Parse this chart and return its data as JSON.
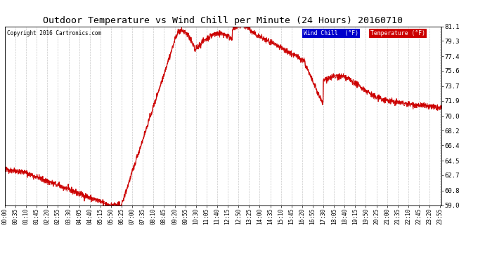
{
  "title": "Outdoor Temperature vs Wind Chill per Minute (24 Hours) 20160710",
  "copyright": "Copyright 2016 Cartronics.com",
  "yticks": [
    59.0,
    60.8,
    62.7,
    64.5,
    66.4,
    68.2,
    70.0,
    71.9,
    73.7,
    75.6,
    77.4,
    79.3,
    81.1
  ],
  "xtick_labels": [
    "00:00",
    "00:35",
    "01:10",
    "01:45",
    "02:20",
    "02:55",
    "03:30",
    "04:05",
    "04:40",
    "05:15",
    "05:50",
    "06:25",
    "07:00",
    "07:35",
    "08:10",
    "08:45",
    "09:20",
    "09:55",
    "10:30",
    "11:05",
    "11:40",
    "12:15",
    "12:50",
    "13:25",
    "14:00",
    "14:35",
    "15:10",
    "15:45",
    "16:20",
    "16:55",
    "17:30",
    "18:05",
    "18:40",
    "19:15",
    "19:50",
    "20:25",
    "21:00",
    "21:35",
    "22:10",
    "22:45",
    "23:20",
    "23:55"
  ],
  "bg_color": "#ffffff",
  "plot_bg_color": "#ffffff",
  "grid_color": "#bbbbbb",
  "line_color": "#cc0000",
  "title_fontsize": 9.5,
  "legend_wind_chill_bg": "#0000cc",
  "legend_temp_bg": "#cc0000",
  "legend_text_color": "#ffffff",
  "ylim": [
    59.0,
    81.1
  ],
  "num_points": 1440
}
